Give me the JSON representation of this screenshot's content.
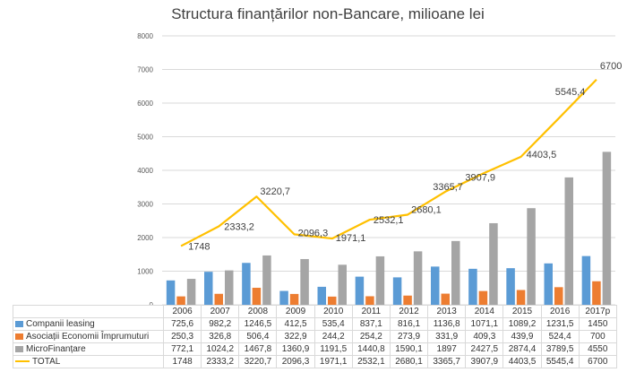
{
  "colors": {
    "companii": "#5b9bd5",
    "asociatii": "#ed7d31",
    "micro": "#a5a5a5",
    "total": "#ffc000",
    "grid": "#d9d9d9",
    "axis_text": "#595959"
  },
  "chart_data": {
    "type": "bar",
    "title": "Structura finanțărilor non-Bancare, milioane lei",
    "categories": [
      "2006",
      "2007",
      "2008",
      "2009",
      "2010",
      "2011",
      "2012",
      "2013",
      "2014",
      "2015",
      "2016",
      "2017p"
    ],
    "ylim": [
      0,
      8000
    ],
    "yticks": [
      0,
      1000,
      2000,
      3000,
      4000,
      5000,
      6000,
      7000,
      8000
    ],
    "grid": true,
    "legend": "data-table",
    "series": [
      {
        "name": "Companii leasing",
        "kind": "bar",
        "color_key": "companii",
        "values": [
          725.6,
          982.2,
          1246.5,
          412.5,
          535.4,
          837.1,
          816.1,
          1136.8,
          1071.1,
          1089.2,
          1231.5,
          1450
        ],
        "labels": [
          "725,6",
          "982,2",
          "1246,5",
          "412,5",
          "535,4",
          "837,1",
          "816,1",
          "1136,8",
          "1071,1",
          "1089,2",
          "1231,5",
          "1450"
        ]
      },
      {
        "name": "Asociații Economii Împrumuturi",
        "kind": "bar",
        "color_key": "asociatii",
        "values": [
          250.3,
          326.8,
          506.4,
          322.9,
          244.2,
          254.2,
          273.9,
          331.9,
          409.3,
          439.9,
          524.4,
          700
        ],
        "labels": [
          "250,3",
          "326,8",
          "506,4",
          "322,9",
          "244,2",
          "254,2",
          "273,9",
          "331,9",
          "409,3",
          "439,9",
          "524,4",
          "700"
        ]
      },
      {
        "name": "MicroFinanțare",
        "kind": "bar",
        "color_key": "micro",
        "values": [
          772.1,
          1024.2,
          1467.8,
          1360.9,
          1191.5,
          1440.8,
          1590.1,
          1897,
          2427.5,
          2874.4,
          3789.5,
          4550
        ],
        "labels": [
          "772,1",
          "1024,2",
          "1467,8",
          "1360,9",
          "1191,5",
          "1440,8",
          "1590,1",
          "1897",
          "2427,5",
          "2874,4",
          "3789,5",
          "4550"
        ]
      },
      {
        "name": "TOTAL",
        "kind": "line",
        "color_key": "total",
        "values": [
          1748,
          2333.2,
          3220.7,
          2096.3,
          1971.1,
          2532.1,
          2680.1,
          3365.7,
          3907.9,
          4403.5,
          5545.4,
          6700
        ],
        "labels": [
          "1748",
          "2333,2",
          "3220,7",
          "2096,3",
          "1971,1",
          "2532,1",
          "2680,1",
          "3365,7",
          "3907,9",
          "4403,5",
          "5545,4",
          "6700"
        ]
      }
    ]
  }
}
